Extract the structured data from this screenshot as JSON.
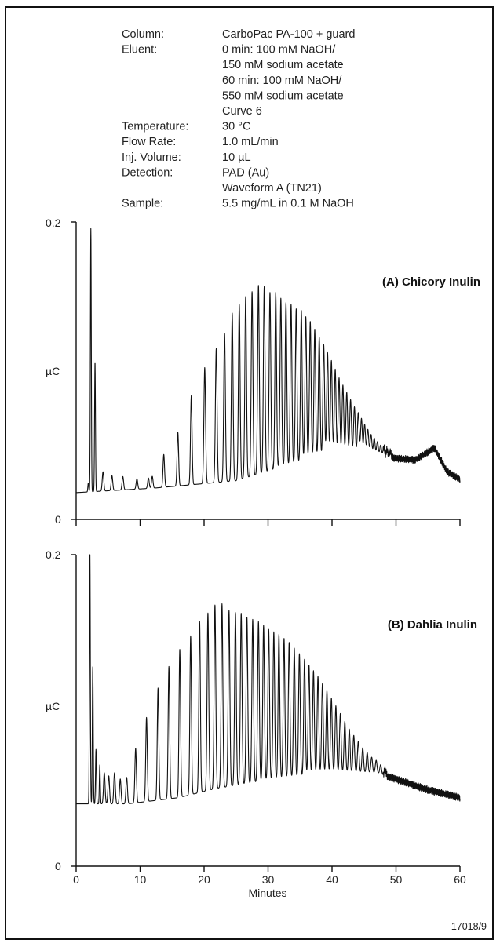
{
  "conditions": [
    {
      "label": "Column:",
      "values": [
        "CarboPac PA-100 + guard"
      ]
    },
    {
      "label": "Eluent:",
      "values": [
        "0 min: 100 mM NaOH/",
        "150 mM sodium acetate",
        "60 min: 100 mM NaOH/",
        "550 mM sodium acetate",
        "Curve 6"
      ]
    },
    {
      "label": "Temperature:",
      "values": [
        "30 °C"
      ]
    },
    {
      "label": "Flow Rate:",
      "values": [
        "1.0 mL/min"
      ]
    },
    {
      "label": "Inj. Volume:",
      "values": [
        "10 µL"
      ]
    },
    {
      "label": "Detection:",
      "values": [
        "PAD (Au)",
        "Waveform A (TN21)"
      ]
    },
    {
      "label": "Sample:",
      "values": [
        "5.5 mg/mL in 0.1 M NaOH"
      ]
    }
  ],
  "figure_id": "17018/9",
  "chart_data": [
    {
      "type": "line",
      "title": "(A) Chicory Inulin",
      "ylabel": "µC",
      "xlabel": "",
      "xlim": [
        0,
        60
      ],
      "ylim": [
        0,
        0.2
      ],
      "yticks": [
        "0",
        "0.2"
      ],
      "xticks": [
        0,
        10,
        20,
        30,
        40,
        50,
        60
      ],
      "xtick_labels": [],
      "baseline": 0.018,
      "series": [
        {
          "peaks": [
            [
              1.9,
              0.006
            ],
            [
              2.3,
              0.177
            ],
            [
              2.95,
              0.087
            ],
            [
              4.2,
              0.013
            ],
            [
              5.6,
              0.01
            ],
            [
              7.3,
              0.009
            ],
            [
              9.5,
              0.007
            ],
            [
              11.3,
              0.007
            ],
            [
              11.9,
              0.008
            ],
            [
              13.7,
              0.022
            ],
            [
              15.9,
              0.036
            ],
            [
              18.0,
              0.06
            ],
            [
              20.1,
              0.078
            ],
            [
              21.9,
              0.09
            ],
            [
              23.2,
              0.1
            ],
            [
              24.4,
              0.113
            ],
            [
              25.5,
              0.118
            ],
            [
              26.5,
              0.122
            ],
            [
              27.5,
              0.124
            ],
            [
              28.5,
              0.127
            ],
            [
              29.4,
              0.125
            ],
            [
              30.3,
              0.12
            ],
            [
              31.2,
              0.119
            ],
            [
              32.0,
              0.114
            ],
            [
              32.8,
              0.11
            ],
            [
              33.6,
              0.108
            ],
            [
              34.4,
              0.104
            ],
            [
              35.2,
              0.102
            ],
            [
              35.9,
              0.097
            ],
            [
              36.6,
              0.093
            ],
            [
              37.3,
              0.087
            ],
            [
              38.0,
              0.081
            ],
            [
              38.7,
              0.075
            ],
            [
              39.3,
              0.069
            ],
            [
              39.9,
              0.063
            ],
            [
              40.5,
              0.057
            ],
            [
              41.1,
              0.051
            ],
            [
              41.7,
              0.046
            ],
            [
              42.3,
              0.041
            ],
            [
              42.9,
              0.036
            ],
            [
              43.5,
              0.031
            ],
            [
              44.1,
              0.027
            ],
            [
              44.6,
              0.023
            ],
            [
              45.1,
              0.019
            ],
            [
              45.6,
              0.016
            ],
            [
              46.1,
              0.013
            ],
            [
              46.6,
              0.011
            ],
            [
              47.1,
              0.009
            ],
            [
              47.6,
              0.007
            ],
            [
              48.1,
              0.006
            ],
            [
              48.6,
              0.005
            ],
            [
              49.1,
              0.004
            ]
          ],
          "background": [
            [
              0,
              0.0
            ],
            [
              12,
              0.003
            ],
            [
              25,
              0.008
            ],
            [
              33,
              0.018
            ],
            [
              40,
              0.026
            ],
            [
              45,
              0.027
            ],
            [
              50,
              0.023
            ],
            [
              53,
              0.022
            ],
            [
              56,
              0.03
            ],
            [
              58,
              0.014
            ],
            [
              60,
              0.009
            ]
          ]
        }
      ]
    },
    {
      "type": "line",
      "title": "(B) Dahlia Inulin",
      "ylabel": "µC",
      "xlabel": "Minutes",
      "xlim": [
        0,
        60
      ],
      "ylim": [
        0,
        0.2
      ],
      "yticks": [
        "0",
        "0.2"
      ],
      "xticks": [
        0,
        10,
        20,
        30,
        40,
        50,
        60
      ],
      "xtick_labels": [
        "0",
        "10",
        "20",
        "30",
        "40",
        "50",
        "60"
      ],
      "baseline": 0.04,
      "series": [
        {
          "peaks": [
            [
              2.0,
              0.0
            ],
            [
              2.15,
              0.162
            ],
            [
              2.6,
              0.088
            ],
            [
              3.1,
              0.035
            ],
            [
              3.7,
              0.025
            ],
            [
              4.4,
              0.02
            ],
            [
              5.1,
              0.018
            ],
            [
              6.0,
              0.02
            ],
            [
              6.9,
              0.016
            ],
            [
              7.9,
              0.017
            ],
            [
              9.3,
              0.035
            ],
            [
              11.0,
              0.054
            ],
            [
              12.8,
              0.072
            ],
            [
              14.5,
              0.085
            ],
            [
              16.2,
              0.095
            ],
            [
              17.9,
              0.102
            ],
            [
              19.3,
              0.11
            ],
            [
              20.6,
              0.114
            ],
            [
              21.7,
              0.118
            ],
            [
              22.8,
              0.118
            ],
            [
              23.9,
              0.113
            ],
            [
              24.9,
              0.111
            ],
            [
              25.8,
              0.11
            ],
            [
              26.7,
              0.107
            ],
            [
              27.6,
              0.105
            ],
            [
              28.5,
              0.103
            ],
            [
              29.3,
              0.1
            ],
            [
              30.1,
              0.097
            ],
            [
              30.9,
              0.095
            ],
            [
              31.7,
              0.093
            ],
            [
              32.5,
              0.09
            ],
            [
              33.3,
              0.087
            ],
            [
              34.1,
              0.083
            ],
            [
              34.9,
              0.079
            ],
            [
              35.7,
              0.075
            ],
            [
              36.4,
              0.071
            ],
            [
              37.1,
              0.067
            ],
            [
              37.8,
              0.063
            ],
            [
              38.5,
              0.058
            ],
            [
              39.2,
              0.053
            ],
            [
              39.9,
              0.048
            ],
            [
              40.6,
              0.043
            ],
            [
              41.3,
              0.038
            ],
            [
              42.0,
              0.033
            ],
            [
              42.7,
              0.028
            ],
            [
              43.4,
              0.024
            ],
            [
              44.1,
              0.02
            ],
            [
              44.8,
              0.016
            ],
            [
              45.5,
              0.013
            ],
            [
              46.2,
              0.01
            ],
            [
              46.9,
              0.008
            ],
            [
              47.6,
              0.006
            ],
            [
              48.3,
              0.004
            ]
          ],
          "background": [
            [
              0,
              0.0
            ],
            [
              8,
              0.0
            ],
            [
              16,
              0.004
            ],
            [
              22,
              0.01
            ],
            [
              30,
              0.015
            ],
            [
              40,
              0.02
            ],
            [
              47,
              0.02
            ],
            [
              55,
              0.009
            ],
            [
              60,
              0.004
            ]
          ]
        }
      ]
    }
  ]
}
